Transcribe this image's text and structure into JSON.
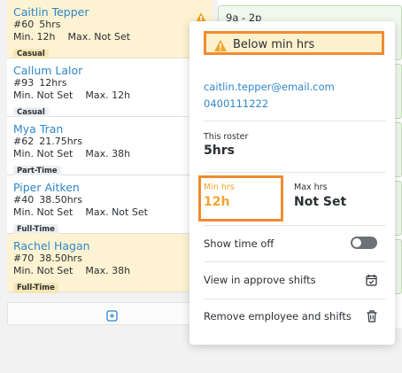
{
  "employees": [
    {
      "name": "Caitlin Tepper",
      "number": "#60",
      "hours": "5hrs",
      "min": "Min. 12h",
      "max": "Max. Not Set",
      "type": "Casual"
    },
    {
      "name": "Callum Lalor",
      "number": "#93",
      "hours": "12hrs",
      "min": "Min. Not Set",
      "max": "Max. 12h",
      "type": "Casual"
    },
    {
      "name": "Mya Tran",
      "number": "#62",
      "hours": "21.75hrs",
      "min": "Min. Not Set",
      "max": "Max. 38h",
      "type": "Part-Time"
    },
    {
      "name": "Piper Aitken",
      "number": "#40",
      "hours": "38.50hrs",
      "min": "Min. Not Set",
      "max": "Max. Not Set",
      "type": "Full-Time"
    },
    {
      "name": "Rachel Hagan",
      "number": "#70",
      "hours": "38.50hrs",
      "min": "Min. Not Set",
      "max": "Max. 38h",
      "type": "Full-Time"
    }
  ],
  "shift": {
    "time": "9a - 2p"
  },
  "popover": {
    "warning": "Below min hrs",
    "email": "caitlin.tepper@email.com",
    "phone": "0400111222",
    "roster_label": "This roster",
    "roster_value": "5hrs",
    "min_label": "Min hrs",
    "min_value": "12h",
    "max_label": "Max hrs",
    "max_value": "Not Set",
    "time_off_label": "Show time off",
    "approve_label": "View in approve shifts",
    "remove_label": "Remove employee and shifts"
  },
  "colors": {
    "accent_link": "#2f86c9",
    "warning_orange": "#f3a42c",
    "highlight_border": "#f28b30"
  }
}
